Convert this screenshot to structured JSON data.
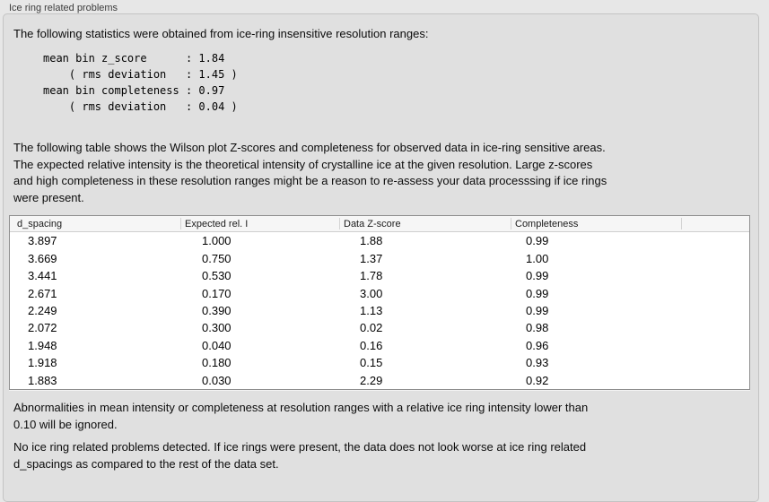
{
  "window": {
    "title": "Ice ring related problems"
  },
  "intro": {
    "text": "The following statistics were obtained from ice-ring insensitive resolution ranges:"
  },
  "stats": {
    "block": "mean bin z_score      : 1.84\n    ( rms deviation   : 1.45 )\nmean bin completeness : 0.97\n    ( rms deviation   : 0.04 )"
  },
  "description": {
    "lines": [
      "The following table shows the Wilson plot Z-scores and completeness for observed data in ice-ring sensitive areas.",
      "The expected relative intensity is the theoretical intensity of crystalline ice at the given resolution. Large z-scores",
      "and high completeness in these resolution ranges might be a reason to re-assess your data processsing if ice rings",
      "were present."
    ]
  },
  "table": {
    "columns": [
      "d_spacing",
      "Expected rel. I",
      "Data Z-score",
      "Completeness"
    ],
    "rows": [
      [
        "3.897",
        "1.000",
        "1.88",
        "0.99"
      ],
      [
        "3.669",
        "0.750",
        "1.37",
        "1.00"
      ],
      [
        "3.441",
        "0.530",
        "1.78",
        "0.99"
      ],
      [
        "2.671",
        "0.170",
        "3.00",
        "0.99"
      ],
      [
        "2.249",
        "0.390",
        "1.13",
        "0.99"
      ],
      [
        "2.072",
        "0.300",
        "0.02",
        "0.98"
      ],
      [
        "1.948",
        "0.040",
        "0.16",
        "0.96"
      ],
      [
        "1.918",
        "0.180",
        "0.15",
        "0.93"
      ],
      [
        "1.883",
        "0.030",
        "2.29",
        "0.92"
      ]
    ]
  },
  "note": {
    "lines": [
      "Abnormalities in mean intensity or completeness at resolution ranges with a relative ice ring intensity lower than",
      "0.10 will be ignored."
    ]
  },
  "conclusion": {
    "lines": [
      "No ice ring related problems detected. If ice rings were present, the data does not look worse at ice ring related",
      "d_spacings as compared to the rest of the data set."
    ]
  }
}
